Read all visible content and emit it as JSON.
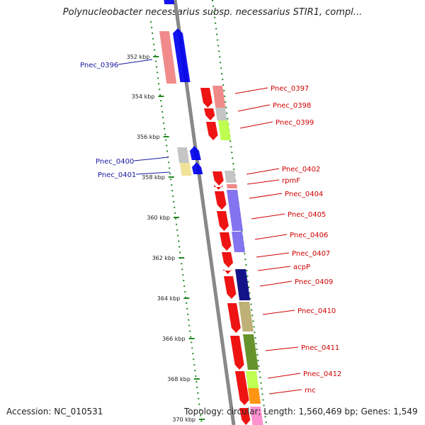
{
  "title": "Polynucleobacter necessarius subsp. necessarius STIR1, compl...",
  "footer": {
    "accession": "Accession: NC_010531",
    "summary": "Topology: circular; Length: 1,560,469 bp; Genes: 1,549"
  },
  "colors": {
    "axis": "#888888",
    "ticks": "#228822",
    "forward_label": "#1a1aa0",
    "reverse_label": "#d00000"
  },
  "kbp_labels": [
    "352 kbp",
    "354 kbp",
    "356 kbp",
    "358 kbp",
    "360 kbp",
    "362 kbp",
    "364 kbp",
    "366 kbp",
    "368 kbp",
    "370 kbp"
  ],
  "gene_labels": [
    {
      "text": "Pnec_0396",
      "strand": "forward"
    },
    {
      "text": "Pnec_0397",
      "strand": "reverse"
    },
    {
      "text": "Pnec_0398",
      "strand": "reverse"
    },
    {
      "text": "Pnec_0399",
      "strand": "reverse"
    },
    {
      "text": "Pnec_0400",
      "strand": "forward"
    },
    {
      "text": "Pnec_0401",
      "strand": "forward"
    },
    {
      "text": "Pnec_0402",
      "strand": "reverse"
    },
    {
      "text": "rpmF",
      "strand": "reverse"
    },
    {
      "text": "Pnec_0404",
      "strand": "reverse"
    },
    {
      "text": "Pnec_0405",
      "strand": "reverse"
    },
    {
      "text": "Pnec_0406",
      "strand": "reverse"
    },
    {
      "text": "Pnec_0407",
      "strand": "reverse"
    },
    {
      "text": "acpP",
      "strand": "reverse"
    },
    {
      "text": "Pnec_0409",
      "strand": "reverse"
    },
    {
      "text": "Pnec_0410",
      "strand": "reverse"
    },
    {
      "text": "Pnec_0411",
      "strand": "reverse"
    },
    {
      "text": "Pnec_0412",
      "strand": "reverse"
    },
    {
      "text": "rnc",
      "strand": "reverse"
    }
  ]
}
